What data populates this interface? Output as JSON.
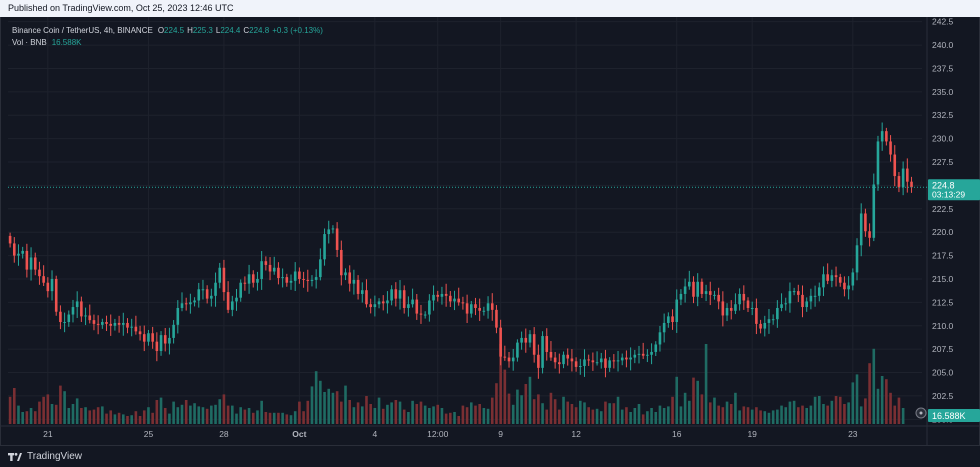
{
  "header": {
    "published": "Published on TradingView.com, Oct 25, 2023 12:46 UTC"
  },
  "legend": {
    "symbol": "Binance Coin / TetherUS, 4h, BINANCE",
    "o_label": "O",
    "o_value": "224.5",
    "h_label": "H",
    "h_value": "225.3",
    "l_label": "L",
    "l_value": "224.4",
    "c_label": "C",
    "c_value": "224.8",
    "change": "+0.3 (+0.13%)",
    "vol_label": "Vol · BNB",
    "vol_value": "16.588K"
  },
  "price_badge": {
    "price": "224.8",
    "countdown": "03:13:29"
  },
  "volume_badge": "16.588K",
  "footer": {
    "brand": "TradingView"
  },
  "colors": {
    "up": "#26a69a",
    "down": "#ef5350",
    "up_vol": "#1f6b63",
    "down_vol": "#7a2f33",
    "background": "#131722"
  },
  "chart_data": {
    "type": "candlestick",
    "yaxis_ticks": [
      "242.5",
      "240.0",
      "237.5",
      "235.0",
      "232.5",
      "230.0",
      "227.5",
      "225.0",
      "222.5",
      "220.0",
      "217.5",
      "215.0",
      "212.5",
      "210.0",
      "207.5",
      "205.0",
      "202.5",
      "200.0"
    ],
    "ylim": [
      199.5,
      243.0
    ],
    "xaxis_ticks": [
      {
        "label": "21",
        "index": 9
      },
      {
        "label": "25",
        "index": 33
      },
      {
        "label": "28",
        "index": 51
      },
      {
        "label": "Oct",
        "index": 69
      },
      {
        "label": "4",
        "index": 87
      },
      {
        "label": "12:00",
        "index": 102
      },
      {
        "label": "9",
        "index": 117
      },
      {
        "label": "12",
        "index": 135
      },
      {
        "label": "16",
        "index": 159
      },
      {
        "label": "19",
        "index": 177
      },
      {
        "label": "23",
        "index": 201
      }
    ],
    "last_price": 224.8,
    "close": [
      218.8,
      217.5,
      217.7,
      218.0,
      216.0,
      217.3,
      216.0,
      215.3,
      214.6,
      213.7,
      215.0,
      211.5,
      210.4,
      210.4,
      211.2,
      212.0,
      212.6,
      211.0,
      211.1,
      210.6,
      210.2,
      210.1,
      210.4,
      210.2,
      210.0,
      210.3,
      210.1,
      210.3,
      209.8,
      209.9,
      209.4,
      209.1,
      208.3,
      209.2,
      208.3,
      207.3,
      209.0,
      208.1,
      208.7,
      210.1,
      211.9,
      212.4,
      212.3,
      212.5,
      212.7,
      213.9,
      213.9,
      212.9,
      213.2,
      214.6,
      216.2,
      213.6,
      211.7,
      212.6,
      213.0,
      214.6,
      214.5,
      215.5,
      214.6,
      215.0,
      216.9,
      216.5,
      215.8,
      216.2,
      215.1,
      215.2,
      214.6,
      214.8,
      215.8,
      215.0,
      214.9,
      214.8,
      214.9,
      215.2,
      217.1,
      219.8,
      220.3,
      220.4,
      218.1,
      215.4,
      215.7,
      214.5,
      214.9,
      213.4,
      213.8,
      212.3,
      212.0,
      212.3,
      212.6,
      212.4,
      212.7,
      213.9,
      212.9,
      213.8,
      211.9,
      212.3,
      212.8,
      211.3,
      211.2,
      211.2,
      212.7,
      213.3,
      213.1,
      213.4,
      213.2,
      212.6,
      212.9,
      212.5,
      212.4,
      211.3,
      212.3,
      211.9,
      211.6,
      211.6,
      212.4,
      211.7,
      209.8,
      206.7,
      206.6,
      206.2,
      206.6,
      208.2,
      208.7,
      208.2,
      209.1,
      206.9,
      205.5,
      208.9,
      207.2,
      206.6,
      206.1,
      205.9,
      206.9,
      206.5,
      206.2,
      205.6,
      205.7,
      206.4,
      206.3,
      206.1,
      206.1,
      206.5,
      205.5,
      206.3,
      206.2,
      206.3,
      206.6,
      206.4,
      206.6,
      206.9,
      207.0,
      206.8,
      206.9,
      207.2,
      208.0,
      209.3,
      210.3,
      211.0,
      210.4,
      212.8,
      213.4,
      214.2,
      214.7,
      213.1,
      214.7,
      213.4,
      213.7,
      213.3,
      213.3,
      212.6,
      211.1,
      211.9,
      211.6,
      212.3,
      213.4,
      212.7,
      211.9,
      211.9,
      210.2,
      209.7,
      210.3,
      210.7,
      210.7,
      211.9,
      212.3,
      212.4,
      213.7,
      213.7,
      213.3,
      212.0,
      212.6,
      213.2,
      213.2,
      214.1,
      215.5,
      214.8,
      215.4,
      215.2,
      214.6,
      213.9,
      214.3,
      215.7,
      218.6,
      222.0,
      220.1,
      219.4,
      225.1,
      229.7,
      230.8,
      229.7,
      228.3,
      226.0,
      224.8,
      226.8,
      225.4,
      224.8
    ],
    "volume_relative": [
      0.34,
      0.45,
      0.23,
      0.15,
      0.16,
      0.2,
      0.16,
      0.28,
      0.34,
      0.37,
      0.25,
      0.24,
      0.48,
      0.41,
      0.2,
      0.25,
      0.32,
      0.2,
      0.21,
      0.17,
      0.18,
      0.21,
      0.22,
      0.13,
      0.17,
      0.12,
      0.14,
      0.12,
      0.1,
      0.11,
      0.16,
      0.1,
      0.17,
      0.21,
      0.14,
      0.3,
      0.33,
      0.2,
      0.13,
      0.28,
      0.21,
      0.24,
      0.3,
      0.23,
      0.26,
      0.22,
      0.21,
      0.19,
      0.23,
      0.24,
      0.31,
      0.37,
      0.23,
      0.23,
      0.13,
      0.21,
      0.18,
      0.2,
      0.14,
      0.17,
      0.29,
      0.15,
      0.14,
      0.14,
      0.14,
      0.14,
      0.12,
      0.11,
      0.16,
      0.28,
      0.16,
      0.29,
      0.47,
      0.66,
      0.54,
      0.4,
      0.44,
      0.39,
      0.41,
      0.28,
      0.48,
      0.3,
      0.21,
      0.27,
      0.22,
      0.35,
      0.25,
      0.2,
      0.33,
      0.19,
      0.24,
      0.27,
      0.3,
      0.28,
      0.18,
      0.15,
      0.29,
      0.25,
      0.28,
      0.23,
      0.2,
      0.22,
      0.24,
      0.2,
      0.13,
      0.14,
      0.15,
      0.1,
      0.23,
      0.21,
      0.27,
      0.23,
      0.25,
      0.2,
      0.19,
      0.33,
      0.51,
      1.0,
      0.68,
      0.38,
      0.24,
      0.43,
      0.36,
      0.5,
      0.59,
      0.31,
      0.37,
      0.26,
      0.18,
      0.39,
      0.31,
      0.18,
      0.34,
      0.28,
      0.25,
      0.21,
      0.29,
      0.27,
      0.21,
      0.18,
      0.19,
      0.16,
      0.28,
      0.26,
      0.26,
      0.34,
      0.18,
      0.21,
      0.15,
      0.2,
      0.25,
      0.12,
      0.16,
      0.2,
      0.15,
      0.23,
      0.2,
      0.22,
      0.34,
      0.59,
      0.22,
      0.39,
      0.29,
      0.58,
      0.54,
      0.37,
      1.0,
      0.27,
      0.33,
      0.23,
      0.21,
      0.28,
      0.25,
      0.39,
      0.17,
      0.22,
      0.21,
      0.18,
      0.21,
      0.17,
      0.16,
      0.14,
      0.17,
      0.18,
      0.23,
      0.21,
      0.28,
      0.29,
      0.21,
      0.23,
      0.2,
      0.23,
      0.34,
      0.35,
      0.25,
      0.23,
      0.29,
      0.35,
      0.34,
      0.25,
      0.27,
      0.52,
      0.62,
      0.22,
      0.32,
      0.76,
      0.94,
      0.44,
      0.6,
      0.56,
      0.39,
      0.23,
      0.33,
      0.2
    ]
  }
}
